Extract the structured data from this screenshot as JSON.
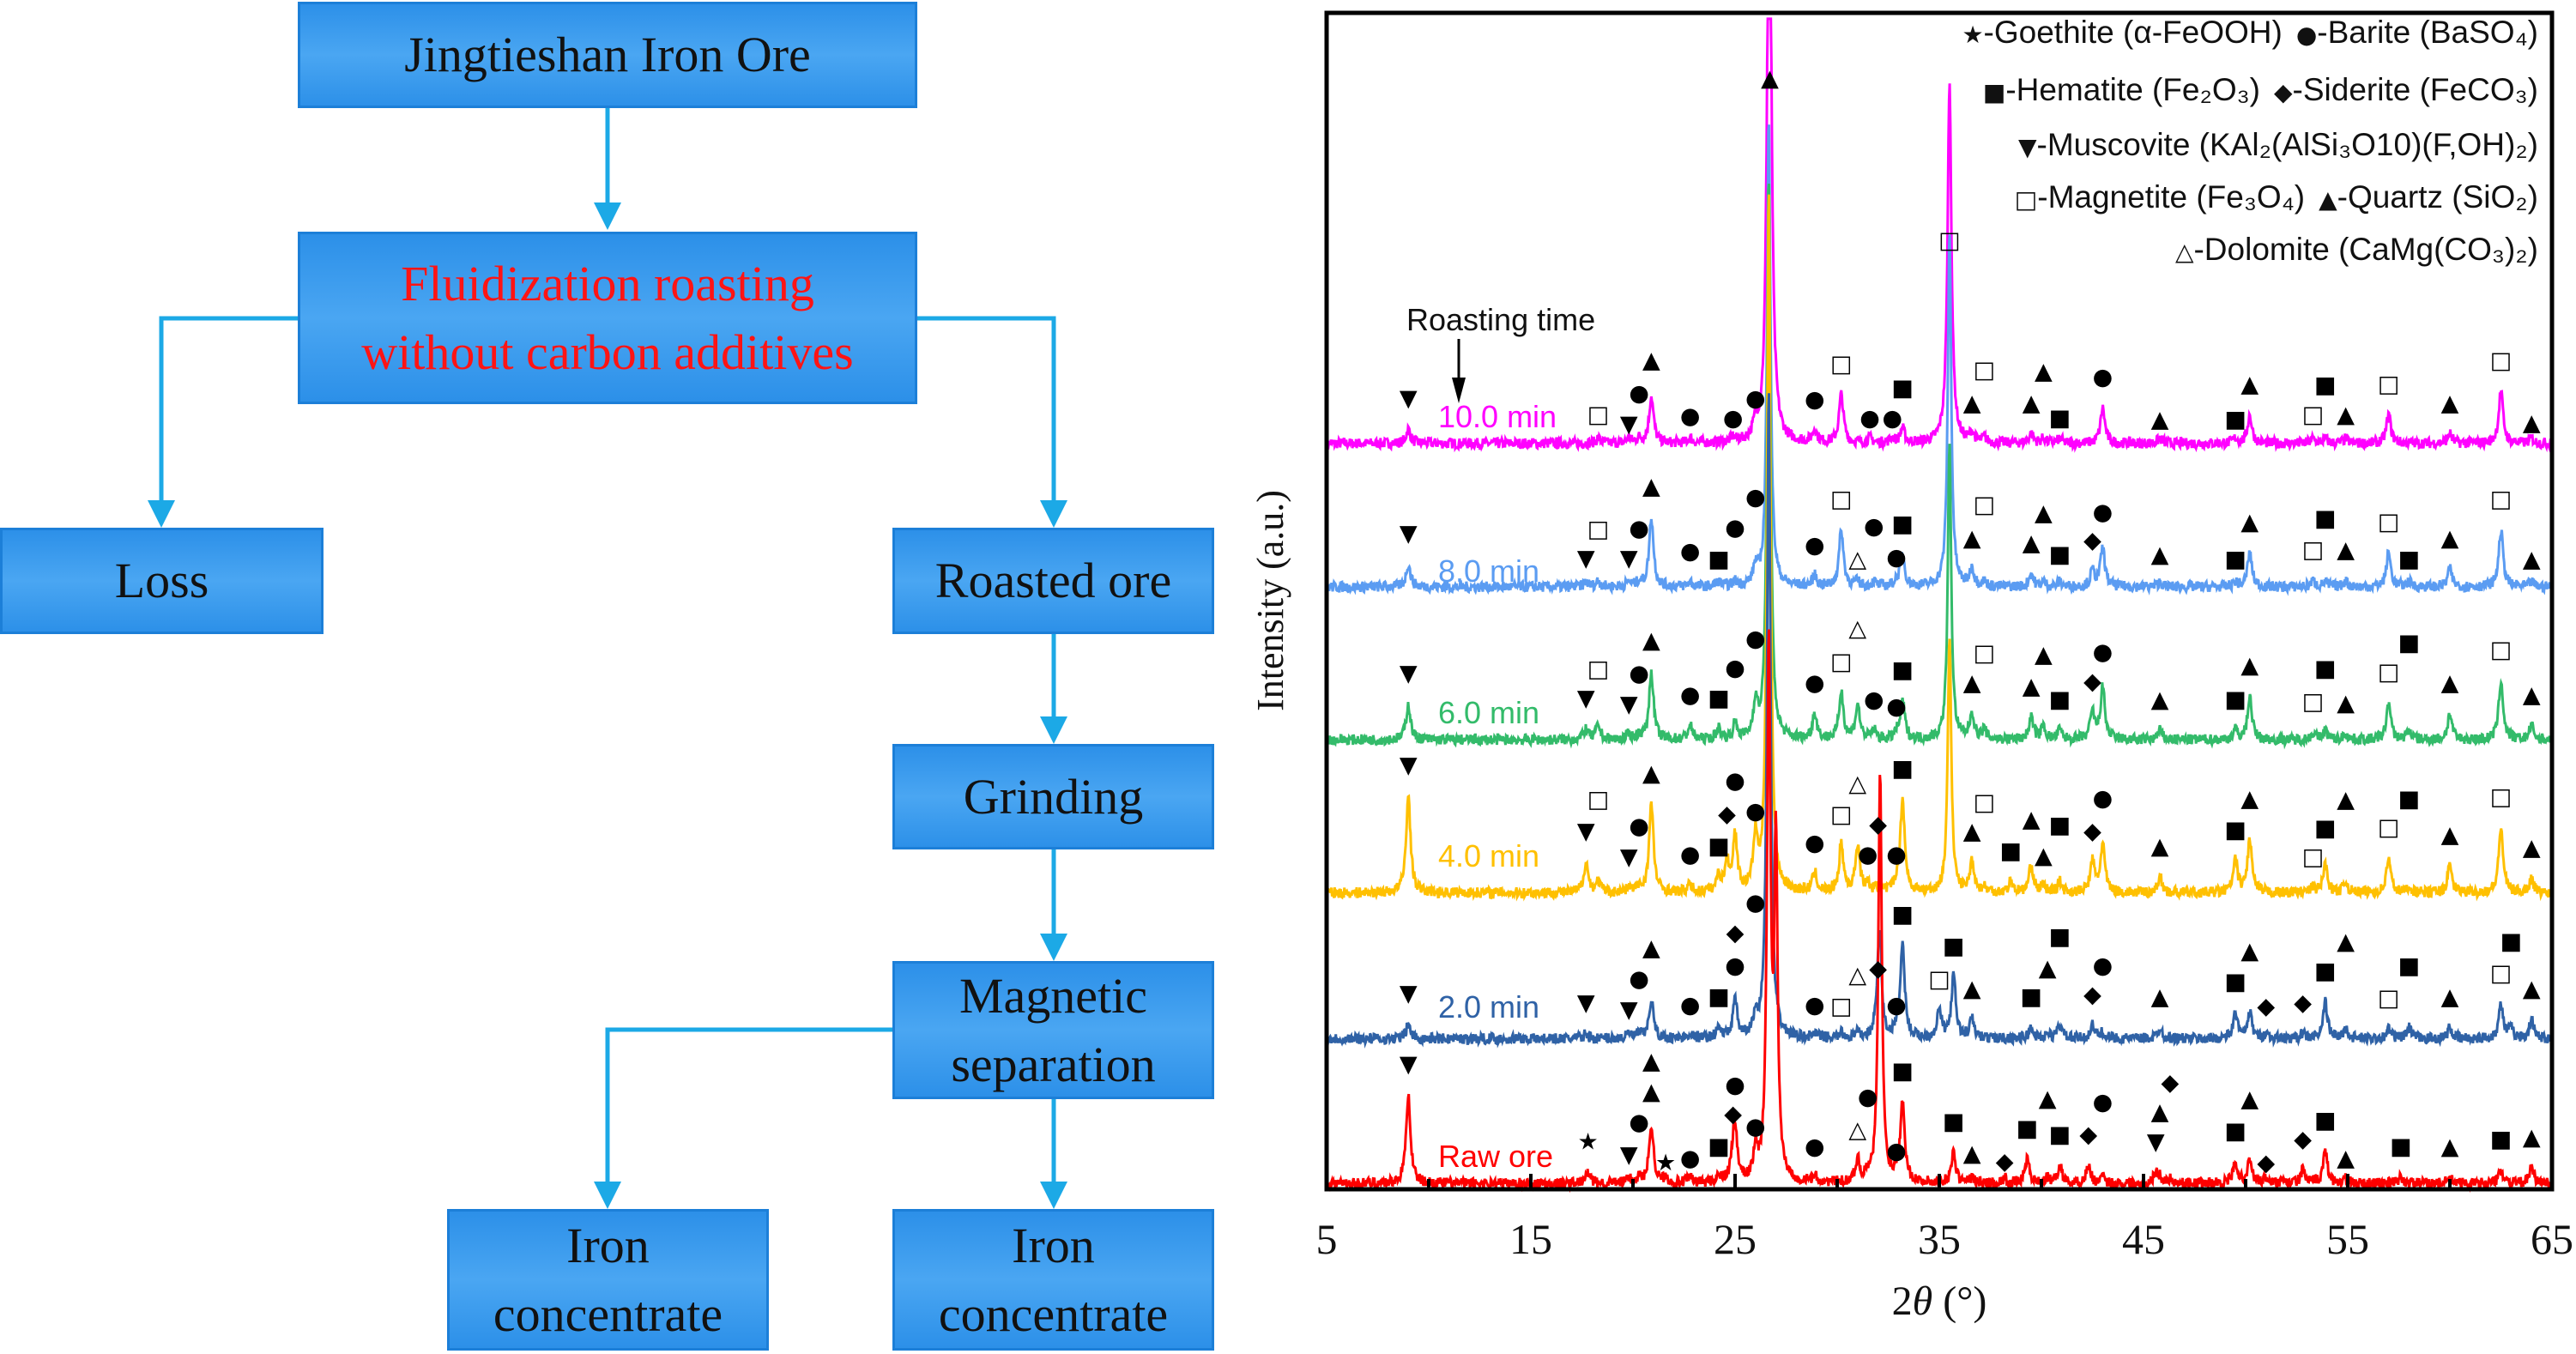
{
  "flowchart": {
    "ore": "Jingtieshan Iron Ore",
    "roasting_line1": "Fluidization roasting",
    "roasting_line2": "without carbon additives",
    "loss": "Loss",
    "roasted": "Roasted ore",
    "grinding": "Grinding",
    "magnetic_line1": "Magnetic",
    "magnetic_line2": "separation",
    "conc_a_line1": "Iron",
    "conc_a_line2": "concentrate",
    "conc_b_line1": "Iron",
    "conc_b_line2": "concentrate",
    "highlight_color": "#ff1414",
    "arrow_color": "#1ca9e6"
  },
  "chart_data": {
    "type": "line",
    "xlabel_prefix": "2",
    "xlabel_theta": "θ",
    "xlabel_unit": " (°)",
    "ylabel": "Intensity (a.u.)",
    "xlim": [
      5,
      65
    ],
    "ylim": [
      0,
      100
    ],
    "xticks": [
      "5",
      "15",
      "25",
      "35",
      "45",
      "55",
      "65"
    ],
    "annotation": "Roasting time",
    "legend": [
      {
        "sym": "★",
        "text": "-Goethite (α-FeOOH)"
      },
      {
        "sym": "●",
        "text": "-Barite (BaSO₄)"
      },
      {
        "sym": "■",
        "text": "-Hematite (Fe₂O₃)"
      },
      {
        "sym": "◆",
        "text": "-Siderite (FeCO₃)"
      },
      {
        "sym": "▼",
        "text": "-Muscovite (KAl₂(AlSi₃O10)(F,OH)₂)"
      },
      {
        "sym": "□",
        "text": "-Magnetite (Fe₃O₄)"
      },
      {
        "sym": "▲",
        "text": "-Quartz (SiO₂)"
      },
      {
        "sym": "△",
        "text": "-Dolomite (CaMg(CO₃)₂)"
      }
    ],
    "series": [
      {
        "name": "10.0 min",
        "color": "#ff00ff",
        "baseline": 63.4,
        "major_peaks": [
          [
            26.65,
            30
          ],
          [
            35.5,
            16
          ]
        ],
        "markers": [
          [
            "▼",
            9,
            3.5
          ],
          [
            "□",
            18.3,
            2.1
          ],
          [
            "▼",
            19.8,
            1.3
          ],
          [
            "●",
            20.3,
            1.3
          ],
          [
            "▲",
            20.9,
            6.3
          ],
          [
            "●",
            22.8,
            2.0
          ],
          [
            "●",
            24.9,
            1.8
          ],
          [
            "●",
            26.0,
            3.5
          ],
          [
            "▲",
            26.7,
            30.7
          ],
          [
            "●",
            28.9,
            3.4
          ],
          [
            "□",
            30.2,
            6.4
          ],
          [
            "●",
            31.6,
            1.8
          ],
          [
            "●",
            32.7,
            1.8
          ],
          [
            "■",
            33.2,
            3.5
          ],
          [
            "□",
            35.5,
            16.9
          ],
          [
            "▲",
            36.6,
            3.1
          ],
          [
            "□",
            37.2,
            1.5
          ],
          [
            "▲",
            39.5,
            3.1
          ],
          [
            "▲",
            40.1,
            1.4
          ],
          [
            "■",
            40.9,
            1.8
          ],
          [
            "●",
            43.0,
            5.3
          ],
          [
            "▲",
            45.8,
            1.7
          ],
          [
            "■",
            49.5,
            1.7
          ],
          [
            "▲",
            50.2,
            4.7
          ],
          [
            "□",
            53.3,
            2.1
          ],
          [
            "■",
            53.9,
            2.0
          ],
          [
            "▲",
            54.9,
            2.1
          ],
          [
            "□",
            57.0,
            4.7
          ],
          [
            "▲",
            60.0,
            3.1
          ],
          [
            "□",
            62.5,
            6.7
          ],
          [
            "▲",
            64.0,
            1.4
          ]
        ]
      },
      {
        "name": "8.0 min",
        "color": "#5b9cf2",
        "baseline": 51.2,
        "major_peaks": [
          [
            26.65,
            40
          ],
          [
            35.5,
            30
          ]
        ],
        "markers": [
          [
            "▼",
            9,
            4.2
          ],
          [
            "▼",
            17.7,
            2.1
          ],
          [
            "□",
            18.3,
            2.8
          ],
          [
            "▼",
            19.8,
            2.1
          ],
          [
            "●",
            20.3,
            2.0
          ],
          [
            "▲",
            20.9,
            8.2
          ],
          [
            "●",
            22.8,
            2.7
          ],
          [
            "■",
            24.2,
            2.0
          ],
          [
            "●",
            25.0,
            2.1
          ],
          [
            "●",
            26.0,
            3.8
          ],
          [
            "●",
            28.9,
            3.2
          ],
          [
            "□",
            30.2,
            7.1
          ],
          [
            "△",
            31.0,
            2.0
          ],
          [
            "●",
            31.8,
            2.2
          ],
          [
            "●",
            32.9,
            2.2
          ],
          [
            "■",
            33.2,
            5.0
          ],
          [
            "▲",
            36.6,
            3.8
          ],
          [
            "□",
            37.2,
            2.7
          ],
          [
            "▲",
            39.5,
            3.4
          ],
          [
            "▲",
            40.1,
            2.0
          ],
          [
            "■",
            40.9,
            2.4
          ],
          [
            "◆",
            42.5,
            3.6
          ],
          [
            "●",
            43.0,
            5.6
          ],
          [
            "▲",
            45.8,
            2.4
          ],
          [
            "■",
            49.5,
            2.0
          ],
          [
            "▲",
            50.2,
            5.2
          ],
          [
            "□",
            53.3,
            2.8
          ],
          [
            "■",
            53.9,
            2.4
          ],
          [
            "▲",
            54.9,
            2.8
          ],
          [
            "□",
            57.0,
            5.2
          ],
          [
            "■",
            58.0,
            2.0
          ],
          [
            "▲",
            60.0,
            3.8
          ],
          [
            "□",
            62.5,
            7.1
          ],
          [
            "▲",
            64.0,
            2.0
          ]
        ]
      },
      {
        "name": "6.0 min",
        "color": "#33bb6a",
        "baseline": 38.2,
        "major_peaks": [
          [
            26.65,
            48
          ],
          [
            35.5,
            25
          ]
        ],
        "markers": [
          [
            "▼",
            9,
            5.3
          ],
          [
            "▼",
            17.7,
            3.2
          ],
          [
            "□",
            18.3,
            3.5
          ],
          [
            "▼",
            19.8,
            2.7
          ],
          [
            "●",
            20.3,
            2.7
          ],
          [
            "▲",
            20.9,
            8.1
          ],
          [
            "●",
            22.8,
            3.5
          ],
          [
            "■",
            24.2,
            3.2
          ],
          [
            "●",
            25.0,
            3.6
          ],
          [
            "●",
            26.0,
            5.2
          ],
          [
            "●",
            28.9,
            4.5
          ],
          [
            "□",
            30.2,
            6.3
          ],
          [
            "△",
            31.0,
            5.2
          ],
          [
            "●",
            31.8,
            3.1
          ],
          [
            "●",
            32.9,
            2.5
          ],
          [
            "■",
            33.2,
            5.6
          ],
          [
            "▲",
            36.6,
            4.5
          ],
          [
            "□",
            37.2,
            3.1
          ],
          [
            "▲",
            39.5,
            4.2
          ],
          [
            "▲",
            40.1,
            3.4
          ],
          [
            "■",
            40.9,
            3.1
          ],
          [
            "◆",
            42.5,
            4.6
          ],
          [
            "●",
            43.0,
            6.7
          ],
          [
            "▲",
            45.8,
            3.1
          ],
          [
            "■",
            49.5,
            3.1
          ],
          [
            "▲",
            50.2,
            6.0
          ],
          [
            "□",
            53.3,
            2.9
          ],
          [
            "■",
            53.9,
            3.1
          ],
          [
            "▲",
            54.9,
            2.8
          ],
          [
            "□",
            57.0,
            5.4
          ],
          [
            "■",
            58.0,
            3.1
          ],
          [
            "▲",
            60.0,
            4.5
          ],
          [
            "□",
            62.5,
            7.3
          ],
          [
            "▲",
            64.0,
            3.5
          ]
        ]
      },
      {
        "name": "4.0 min",
        "color": "#ffc000",
        "baseline": 25.2,
        "major_peaks": [
          [
            26.65,
            60
          ],
          [
            35.5,
            22
          ]
        ],
        "markers": [
          [
            "▼",
            9,
            10.5
          ],
          [
            "▼",
            17.7,
            4.9
          ],
          [
            "□",
            18.3,
            3.2
          ],
          [
            "▼",
            19.8,
            2.7
          ],
          [
            "●",
            20.3,
            2.7
          ],
          [
            "▲",
            20.9,
            9.8
          ],
          [
            "●",
            22.8,
            2.9
          ],
          [
            "■",
            24.2,
            3.6
          ],
          [
            "◆",
            24.6,
            4.6
          ],
          [
            "●",
            25.0,
            7.0
          ],
          [
            "●",
            26.0,
            6.6
          ],
          [
            "●",
            28.9,
            3.9
          ],
          [
            "□",
            30.2,
            6.3
          ],
          [
            "△",
            31.0,
            6.3
          ],
          [
            "●",
            31.5,
            2.9
          ],
          [
            "◆",
            32.0,
            2.4
          ],
          [
            "●",
            32.9,
            2.9
          ],
          [
            "■",
            33.2,
            10.2
          ],
          [
            "▲",
            36.6,
            4.9
          ],
          [
            "□",
            37.2,
            2.5
          ],
          [
            "■",
            38.5,
            3.2
          ],
          [
            "▲",
            39.5,
            4.6
          ],
          [
            "▲",
            40.1,
            2.8
          ],
          [
            "■",
            40.9,
            3.2
          ],
          [
            "◆",
            42.5,
            4.9
          ],
          [
            "●",
            43.0,
            6.4
          ],
          [
            "▲",
            45.8,
            3.6
          ],
          [
            "■",
            49.5,
            5.0
          ],
          [
            "▲",
            50.2,
            6.8
          ],
          [
            "□",
            53.3,
            2.7
          ],
          [
            "■",
            53.9,
            4.7
          ],
          [
            "▲",
            54.9,
            3.2
          ],
          [
            "□",
            57.0,
            5.2
          ],
          [
            "■",
            58.0,
            2.8
          ],
          [
            "▲",
            60.0,
            4.6
          ],
          [
            "□",
            62.5,
            7.8
          ],
          [
            "▲",
            64.0,
            3.5
          ]
        ]
      },
      {
        "name": "2.0 min",
        "color": "#2f62a6",
        "baseline": 12.8,
        "major_peaks": [
          [
            26.65,
            55
          ],
          [
            32.1,
            7
          ]
        ],
        "markers": [
          [
            "▼",
            9,
            3.5
          ],
          [
            "▼",
            17.7,
            2.7
          ],
          [
            "▼",
            19.8,
            2.1
          ],
          [
            "●",
            20.3,
            2.1
          ],
          [
            "▲",
            20.9,
            5.6
          ],
          [
            "●",
            22.8,
            2.5
          ],
          [
            "■",
            24.2,
            3.2
          ],
          [
            "●",
            25.0,
            5.0
          ],
          [
            "◆",
            25.0,
            2.5
          ],
          [
            "●",
            26.0,
            3.8
          ],
          [
            "●",
            28.9,
            2.5
          ],
          [
            "□",
            30.2,
            2.4
          ],
          [
            "△",
            31.0,
            2.0
          ],
          [
            "◆",
            32.0,
            5.6
          ],
          [
            "●",
            32.9,
            2.5
          ],
          [
            "■",
            33.2,
            10.2
          ],
          [
            "□",
            35.0,
            4.7
          ],
          [
            "■",
            35.7,
            7.5
          ],
          [
            "▲",
            36.6,
            3.9
          ],
          [
            "■",
            39.5,
            3.2
          ],
          [
            "▲",
            40.3,
            1.7
          ],
          [
            "■",
            40.9,
            3.5
          ],
          [
            "◆",
            42.5,
            3.4
          ],
          [
            "●",
            43.0,
            2.8
          ],
          [
            "▲",
            45.8,
            3.2
          ],
          [
            "■",
            49.5,
            4.5
          ],
          [
            "▲",
            50.2,
            4.5
          ],
          [
            "◆",
            51.0,
            2.4
          ],
          [
            "◆",
            52.8,
            2.7
          ],
          [
            "■",
            53.9,
            5.4
          ],
          [
            "▲",
            54.9,
            3.1
          ],
          [
            "□",
            57.0,
            3.1
          ],
          [
            "■",
            58.0,
            3.2
          ],
          [
            "▲",
            60.0,
            3.2
          ],
          [
            "□",
            62.5,
            5.2
          ],
          [
            "■",
            63.0,
            3.1
          ],
          [
            "▲",
            64.0,
            3.9
          ]
        ]
      },
      {
        "name": "Raw ore",
        "color": "#ff0000",
        "baseline": 0.5,
        "major_peaks": [
          [
            26.65,
            45
          ],
          [
            27.0,
            28
          ],
          [
            32.1,
            35
          ]
        ],
        "markers": [
          [
            "▼",
            9,
            9.8
          ],
          [
            "★",
            17.8,
            3.2
          ],
          [
            "▼",
            19.8,
            2.1
          ],
          [
            "●",
            20.3,
            1.8
          ],
          [
            "▲",
            20.9,
            5.7
          ],
          [
            "▲",
            20.9,
            3.9
          ],
          [
            "★",
            21.6,
            1.4
          ],
          [
            "●",
            22.8,
            1.8
          ],
          [
            "■",
            24.2,
            2.8
          ],
          [
            "◆",
            24.9,
            3.8
          ],
          [
            "●",
            25.0,
            6.3
          ],
          [
            "●",
            26.0,
            4.5
          ],
          [
            "●",
            28.9,
            2.8
          ],
          [
            "△",
            31.0,
            4.2
          ],
          [
            "●",
            31.5,
            2.2
          ],
          [
            "●",
            32.9,
            2.4
          ],
          [
            "■",
            33.2,
            9.2
          ],
          [
            "■",
            35.7,
            4.9
          ],
          [
            "▲",
            36.6,
            2.2
          ],
          [
            "◆",
            38.2,
            1.5
          ],
          [
            "■",
            39.3,
            4.3
          ],
          [
            "▲",
            40.3,
            2.5
          ],
          [
            "■",
            40.9,
            3.8
          ],
          [
            "◆",
            42.3,
            3.8
          ],
          [
            "●",
            43.0,
            2.2
          ],
          [
            "▼",
            45.6,
            3.2
          ],
          [
            "▲",
            45.8,
            1.8
          ],
          [
            "◆",
            46.3,
            2.1
          ],
          [
            "■",
            49.5,
            4.1
          ],
          [
            "▲",
            50.2,
            4.2
          ],
          [
            "◆",
            51.0,
            1.4
          ],
          [
            "◆",
            52.8,
            3.4
          ],
          [
            "■",
            53.9,
            5.0
          ],
          [
            "▲",
            54.9,
            1.8
          ],
          [
            "■",
            57.6,
            2.8
          ],
          [
            "▲",
            60.0,
            2.8
          ],
          [
            "■",
            62.5,
            3.4
          ],
          [
            "▲",
            64.0,
            3.6
          ]
        ]
      }
    ]
  }
}
